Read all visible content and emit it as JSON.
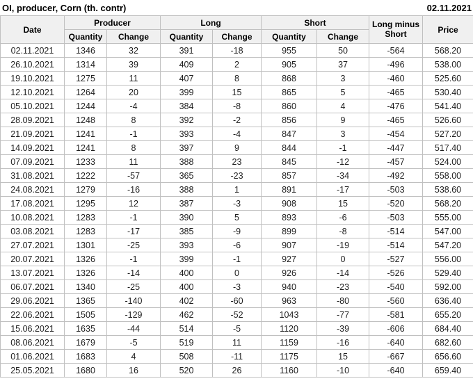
{
  "header": {
    "title": "OI, producer, Corn (th. contr)",
    "date": "02.11.2021"
  },
  "table": {
    "date_header": "Date",
    "groups": {
      "producer": "Producer",
      "long": "Long",
      "short": "Short"
    },
    "sub_quantity": "Quantity",
    "sub_change": "Change",
    "long_minus_short_header": "Long minus Short",
    "price_header": "Price"
  },
  "colors": {
    "positive_change": "#008000",
    "negative_change": "#cc2020",
    "header_bg": "#f0f0f0",
    "border": "#c0c0c0"
  },
  "chart_data": {
    "type": "table",
    "title": "OI, producer, Corn (th. contr)",
    "as_of_date": "02.11.2021",
    "columns": [
      "Date",
      "Producer Quantity",
      "Producer Change",
      "Long Quantity",
      "Long Change",
      "Short Quantity",
      "Short Change",
      "Long minus Short",
      "Price"
    ],
    "rows": [
      [
        "02.11.2021",
        "1346",
        "32",
        "391",
        "-18",
        "955",
        "50",
        "-564",
        "568.20"
      ],
      [
        "26.10.2021",
        "1314",
        "39",
        "409",
        "2",
        "905",
        "37",
        "-496",
        "538.00"
      ],
      [
        "19.10.2021",
        "1275",
        "11",
        "407",
        "8",
        "868",
        "3",
        "-460",
        "525.60"
      ],
      [
        "12.10.2021",
        "1264",
        "20",
        "399",
        "15",
        "865",
        "5",
        "-465",
        "530.40"
      ],
      [
        "05.10.2021",
        "1244",
        "-4",
        "384",
        "-8",
        "860",
        "4",
        "-476",
        "541.40"
      ],
      [
        "28.09.2021",
        "1248",
        "8",
        "392",
        "-2",
        "856",
        "9",
        "-465",
        "526.60"
      ],
      [
        "21.09.2021",
        "1241",
        "-1",
        "393",
        "-4",
        "847",
        "3",
        "-454",
        "527.20"
      ],
      [
        "14.09.2021",
        "1241",
        "8",
        "397",
        "9",
        "844",
        "-1",
        "-447",
        "517.40"
      ],
      [
        "07.09.2021",
        "1233",
        "11",
        "388",
        "23",
        "845",
        "-12",
        "-457",
        "524.00"
      ],
      [
        "31.08.2021",
        "1222",
        "-57",
        "365",
        "-23",
        "857",
        "-34",
        "-492",
        "558.00"
      ],
      [
        "24.08.2021",
        "1279",
        "-16",
        "388",
        "1",
        "891",
        "-17",
        "-503",
        "538.60"
      ],
      [
        "17.08.2021",
        "1295",
        "12",
        "387",
        "-3",
        "908",
        "15",
        "-520",
        "568.20"
      ],
      [
        "10.08.2021",
        "1283",
        "-1",
        "390",
        "5",
        "893",
        "-6",
        "-503",
        "555.00"
      ],
      [
        "03.08.2021",
        "1283",
        "-17",
        "385",
        "-9",
        "899",
        "-8",
        "-514",
        "547.00"
      ],
      [
        "27.07.2021",
        "1301",
        "-25",
        "393",
        "-6",
        "907",
        "-19",
        "-514",
        "547.20"
      ],
      [
        "20.07.2021",
        "1326",
        "-1",
        "399",
        "-1",
        "927",
        "0",
        "-527",
        "556.00"
      ],
      [
        "13.07.2021",
        "1326",
        "-14",
        "400",
        "0",
        "926",
        "-14",
        "-526",
        "529.40"
      ],
      [
        "06.07.2021",
        "1340",
        "-25",
        "400",
        "-3",
        "940",
        "-23",
        "-540",
        "592.00"
      ],
      [
        "29.06.2021",
        "1365",
        "-140",
        "402",
        "-60",
        "963",
        "-80",
        "-560",
        "636.40"
      ],
      [
        "22.06.2021",
        "1505",
        "-129",
        "462",
        "-52",
        "1043",
        "-77",
        "-581",
        "655.20"
      ],
      [
        "15.06.2021",
        "1635",
        "-44",
        "514",
        "-5",
        "1120",
        "-39",
        "-606",
        "684.40"
      ],
      [
        "08.06.2021",
        "1679",
        "-5",
        "519",
        "11",
        "1159",
        "-16",
        "-640",
        "682.60"
      ],
      [
        "01.06.2021",
        "1683",
        "4",
        "508",
        "-11",
        "1175",
        "15",
        "-667",
        "656.60"
      ],
      [
        "25.05.2021",
        "1680",
        "16",
        "520",
        "26",
        "1160",
        "-10",
        "-640",
        "659.40"
      ]
    ]
  }
}
